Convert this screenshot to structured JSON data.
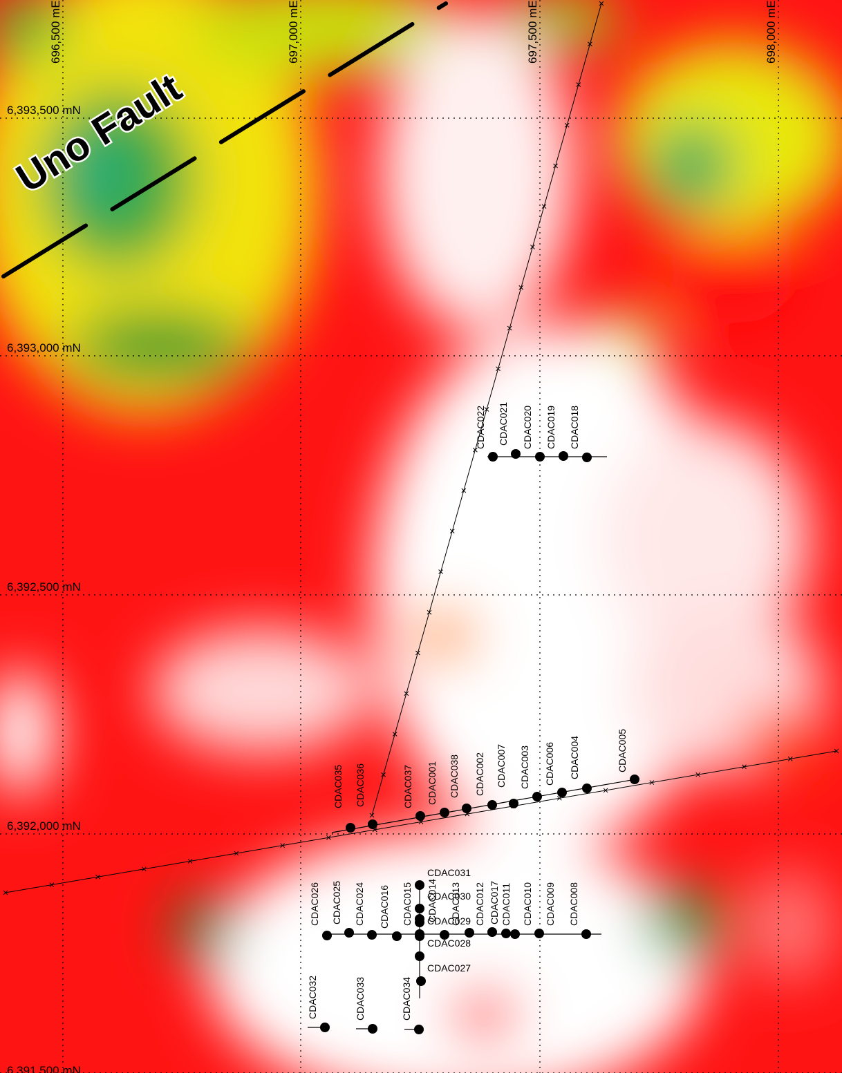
{
  "grid": {
    "eastings": [
      "696,500 mE",
      "697,000 mE",
      "697,500 mE",
      "698,000 mE"
    ],
    "northings": [
      "6,393,500 mN",
      "6,393,000 mN",
      "6,392,500 mN",
      "6,392,000 mN",
      "6,391,500 mN"
    ]
  },
  "fault": {
    "label": "Uno Fault"
  },
  "drill_holes": [
    "CDAC022",
    "CDAC021",
    "CDAC020",
    "CDAC019",
    "CDAC018",
    "CDAC035",
    "CDAC036",
    "CDAC037",
    "CDAC001",
    "CDAC038",
    "CDAC002",
    "CDAC007",
    "CDAC003",
    "CDAC006",
    "CDAC004",
    "CDAC005",
    "CDAC026",
    "CDAC025",
    "CDAC024",
    "CDAC016",
    "CDAC015",
    "CDAC014",
    "CDAC013",
    "CDAC012",
    "CDAC017",
    "CDAC011",
    "CDAC010",
    "CDAC009",
    "CDAC008",
    "CDAC031",
    "CDAC030",
    "CDAC029",
    "CDAC028",
    "CDAC027",
    "CDAC032",
    "CDAC033",
    "CDAC034"
  ]
}
